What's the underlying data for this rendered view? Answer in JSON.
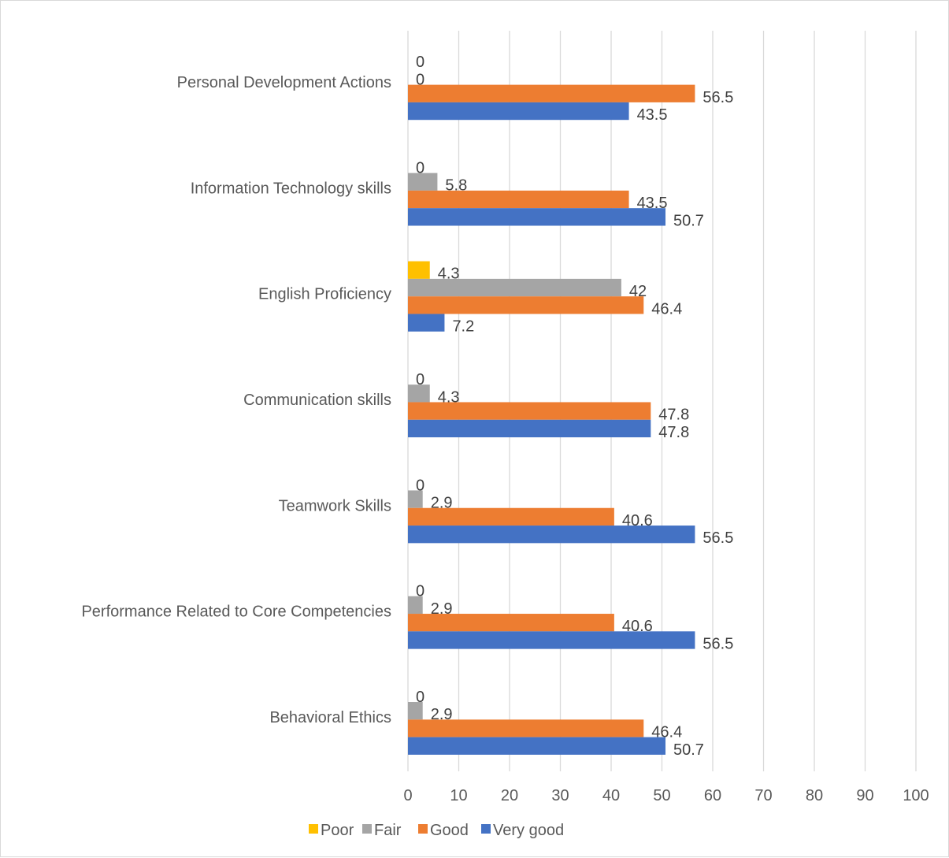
{
  "chart_data": {
    "type": "bar",
    "orientation": "horizontal",
    "title": "",
    "xlabel": "",
    "ylabel": "",
    "categories": [
      "Personal Development Actions",
      "Information Technology skills",
      "English Proficiency",
      "Communication skills",
      "Teamwork Skills",
      "Performance Related to Core Competencies",
      "Behavioral Ethics"
    ],
    "series": [
      {
        "name": "Poor",
        "color": "#ffc000",
        "values": [
          0,
          0,
          4.3,
          0,
          0,
          0,
          0
        ]
      },
      {
        "name": "Fair",
        "color": "#a5a5a5",
        "values": [
          0,
          5.8,
          42,
          4.3,
          2.9,
          2.9,
          2.9
        ]
      },
      {
        "name": "Good",
        "color": "#ed7d31",
        "values": [
          56.5,
          43.5,
          46.4,
          47.8,
          40.6,
          40.6,
          46.4
        ]
      },
      {
        "name": "Very good",
        "color": "#4472c4",
        "values": [
          43.5,
          50.7,
          7.2,
          47.8,
          56.5,
          56.5,
          50.7
        ]
      }
    ],
    "xlim": [
      0,
      100
    ],
    "xticks": [
      0,
      10,
      20,
      30,
      40,
      50,
      60,
      70,
      80,
      90,
      100
    ],
    "grid": true,
    "legend": "bottom",
    "data_labels": true
  }
}
